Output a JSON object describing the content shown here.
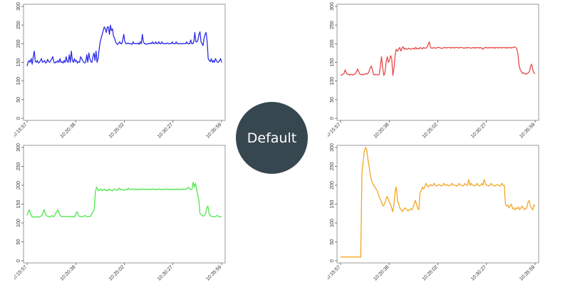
{
  "center_button": {
    "label": "Default",
    "background": "#37474f",
    "text_color": "#ffffff"
  },
  "chart_data": [
    {
      "type": "line",
      "color": "#2b2be6",
      "x_tick_labels": [
        "10:15:57",
        "10:20:38",
        "10:25:02",
        "10:30:27",
        "10:35:59"
      ],
      "y_ticks": [
        0,
        50,
        100,
        150,
        200,
        250,
        300
      ],
      "ylim": [
        0,
        300
      ],
      "series": [
        {
          "values": [
            140,
            150,
            155,
            150,
            160,
            145,
            165,
            180,
            152,
            150,
            155,
            148,
            150,
            155,
            160,
            150,
            152,
            155,
            148,
            150,
            158,
            152,
            150,
            155,
            160,
            165,
            150,
            148,
            152,
            150,
            155,
            150,
            160,
            150,
            152,
            148,
            155,
            150,
            165,
            152,
            150,
            170,
            150,
            180,
            155,
            150,
            160,
            152,
            155,
            148,
            152,
            150,
            165,
            160,
            155,
            150,
            148,
            152,
            170,
            150,
            175,
            160,
            152,
            150,
            165,
            175,
            155,
            180,
            150,
            160,
            185,
            205,
            215,
            225,
            235,
            245,
            240,
            230,
            245,
            245,
            225,
            250,
            235,
            240,
            220,
            215,
            205,
            200,
            198,
            202,
            205,
            200,
            200,
            210,
            225,
            205,
            200,
            200,
            202,
            200,
            200,
            200,
            198,
            205,
            200,
            200,
            200,
            200,
            202,
            198,
            205,
            200,
            225,
            205,
            200,
            200,
            198,
            200,
            200,
            200,
            202,
            200,
            205,
            200,
            200,
            205,
            200,
            200,
            205,
            200,
            200,
            205,
            200,
            200,
            200,
            200,
            202,
            200,
            200,
            200,
            200,
            205,
            200,
            200,
            200,
            205,
            200,
            200,
            200,
            200,
            200,
            200,
            200,
            200,
            200,
            205,
            200,
            200,
            200,
            210,
            200,
            200,
            205,
            230,
            205,
            205,
            210,
            225,
            232,
            205,
            200,
            195,
            215,
            225,
            230,
            205,
            160,
            155,
            152,
            160,
            150,
            155,
            150,
            160,
            155,
            150,
            150,
            155,
            160,
            150
          ]
        }
      ]
    },
    {
      "type": "line",
      "color": "#e64a4a",
      "x_tick_labels": [
        "10:15:57",
        "10:20:38",
        "10:25:02",
        "10:30:27",
        "10:35:59"
      ],
      "y_ticks": [
        0,
        50,
        100,
        150,
        200,
        250,
        300
      ],
      "ylim": [
        0,
        300
      ],
      "series": [
        {
          "values": [
            115,
            116,
            118,
            120,
            130,
            122,
            118,
            118,
            116,
            118,
            117,
            116,
            118,
            120,
            125,
            132,
            125,
            118,
            117,
            118,
            116,
            118,
            120,
            118,
            120,
            125,
            135,
            140,
            130,
            118,
            116,
            118,
            117,
            116,
            118,
            140,
            165,
            135,
            115,
            122,
            150,
            165,
            150,
            155,
            168,
            160,
            115,
            135,
            170,
            185,
            180,
            185,
            190,
            180,
            188,
            192,
            185,
            188,
            185,
            186,
            188,
            186,
            185,
            187,
            188,
            185,
            190,
            186,
            188,
            186,
            190,
            188,
            186,
            190,
            188,
            188,
            190,
            198,
            205,
            190,
            188,
            188,
            190,
            188,
            188,
            190,
            190,
            190,
            188,
            188,
            188,
            190,
            190,
            188,
            190,
            190,
            190,
            188,
            190,
            190,
            188,
            190,
            190,
            190,
            188,
            190,
            190,
            190,
            188,
            188,
            190,
            188,
            190,
            190,
            188,
            188,
            190,
            188,
            190,
            188,
            190,
            190,
            188,
            190,
            188,
            185,
            188,
            190,
            190,
            188,
            190,
            188,
            190,
            190,
            188,
            190,
            188,
            190,
            190,
            188,
            190,
            190,
            188,
            190,
            190,
            188,
            190,
            188,
            190,
            190,
            188,
            190,
            190,
            192,
            190,
            185,
            170,
            140,
            130,
            125,
            120,
            122,
            120,
            118,
            120,
            122,
            125,
            140,
            145,
            130,
            122,
            120
          ]
        }
      ]
    },
    {
      "type": "line",
      "color": "#4ee64e",
      "x_tick_labels": [
        "10:15:57",
        "10:20:38",
        "10:25:02",
        "10:30:27",
        "10:35:59"
      ],
      "y_ticks": [
        0,
        50,
        100,
        150,
        200,
        250,
        300
      ],
      "ylim": [
        0,
        300
      ],
      "series": [
        {
          "values": [
            120,
            130,
            135,
            125,
            118,
            115,
            117,
            115,
            116,
            118,
            115,
            116,
            118,
            120,
            128,
            135,
            125,
            120,
            118,
            117,
            115,
            118,
            120,
            117,
            118,
            125,
            130,
            135,
            128,
            120,
            118,
            116,
            118,
            117,
            116,
            118,
            118,
            116,
            118,
            117,
            118,
            115,
            118,
            125,
            130,
            120,
            118,
            116,
            118,
            117,
            118,
            120,
            118,
            116,
            118,
            117,
            118,
            125,
            130,
            135,
            180,
            195,
            190,
            185,
            188,
            190,
            185,
            188,
            190,
            186,
            188,
            185,
            190,
            188,
            186,
            185,
            188,
            190,
            188,
            186,
            190,
            192,
            188,
            190,
            188,
            186,
            188,
            190,
            188,
            192,
            190,
            188,
            190,
            190,
            188,
            190,
            188,
            190,
            188,
            190,
            190,
            188,
            190,
            190,
            188,
            190,
            188,
            190,
            190,
            188,
            190,
            190,
            188,
            190,
            188,
            190,
            190,
            188,
            190,
            188,
            190,
            190,
            188,
            190,
            190,
            188,
            190,
            188,
            190,
            190,
            188,
            190,
            190,
            188,
            190,
            188,
            190,
            190,
            188,
            190,
            190,
            192,
            195,
            190,
            188,
            190,
            208,
            195,
            205,
            190,
            175,
            160,
            125,
            122,
            120,
            118,
            120,
            125,
            140,
            145,
            125,
            120,
            118,
            117,
            118,
            116,
            118,
            120,
            118,
            117,
            116,
            118
          ]
        }
      ]
    },
    {
      "type": "line",
      "color": "#f5a623",
      "x_tick_labels": [
        "10:15:57",
        "10:20:38",
        "10:25:02",
        "10:30:27",
        "10:35:59"
      ],
      "y_ticks": [
        0,
        50,
        100,
        150,
        200,
        250,
        300
      ],
      "ylim": [
        0,
        300
      ],
      "series": [
        {
          "values": [
            10,
            10,
            10,
            10,
            10,
            10,
            10,
            10,
            10,
            10,
            10,
            10,
            10,
            10,
            10,
            10,
            10,
            10,
            235,
            260,
            290,
            300,
            295,
            270,
            250,
            230,
            215,
            205,
            200,
            195,
            190,
            185,
            175,
            165,
            160,
            150,
            145,
            150,
            160,
            170,
            165,
            155,
            150,
            140,
            130,
            150,
            185,
            195,
            160,
            150,
            140,
            135,
            130,
            135,
            140,
            138,
            135,
            132,
            135,
            138,
            135,
            140,
            150,
            160,
            150,
            140,
            135,
            180,
            185,
            195,
            190,
            195,
            205,
            200,
            195,
            200,
            202,
            198,
            200,
            205,
            200,
            198,
            200,
            202,
            200,
            198,
            200,
            205,
            200,
            200,
            202,
            198,
            200,
            200,
            205,
            200,
            200,
            200,
            198,
            200,
            205,
            200,
            200,
            198,
            200,
            205,
            200,
            200,
            215,
            200,
            205,
            200,
            200,
            198,
            200,
            205,
            200,
            198,
            200,
            205,
            200,
            215,
            205,
            200,
            200,
            198,
            200,
            205,
            200,
            200,
            198,
            200,
            202,
            200,
            198,
            200,
            205,
            200,
            200,
            150,
            145,
            148,
            140,
            145,
            150,
            138,
            140,
            135,
            140,
            138,
            142,
            135,
            140,
            145,
            140,
            135,
            138,
            140,
            155,
            160,
            145,
            140,
            135,
            148,
            145
          ]
        }
      ]
    }
  ]
}
